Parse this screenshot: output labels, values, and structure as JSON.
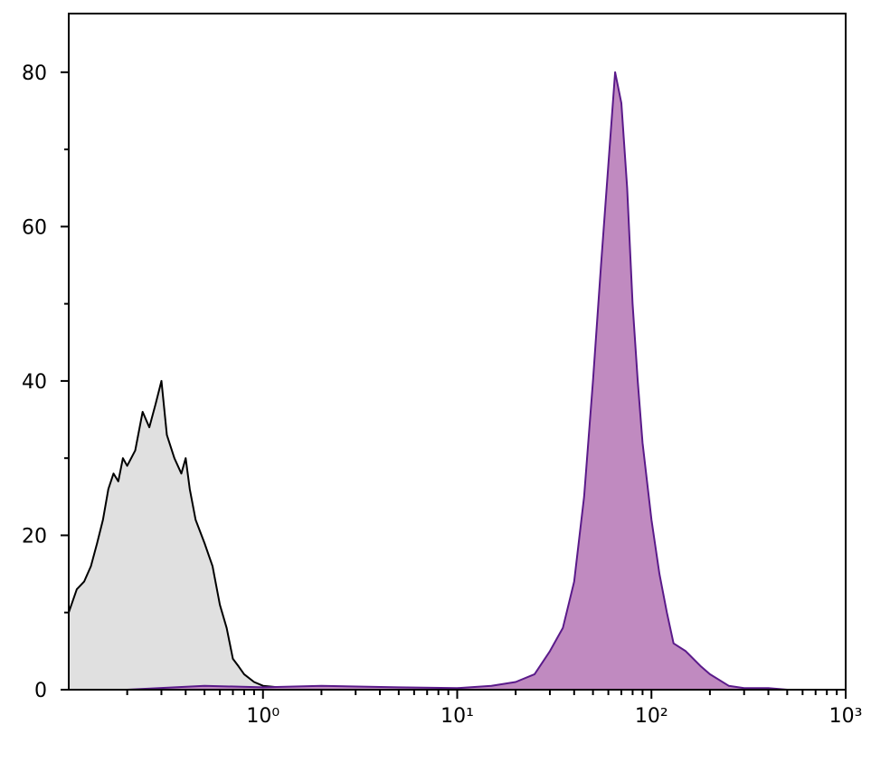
{
  "chart_data": {
    "type": "histogram-area",
    "xscale": "log",
    "xlim": [
      0.1,
      1000
    ],
    "ylim": [
      0,
      87.6
    ],
    "xticks": [
      {
        "value": 1,
        "label": "10⁰"
      },
      {
        "value": 10,
        "label": "10¹"
      },
      {
        "value": 100,
        "label": "10²"
      },
      {
        "value": 1000,
        "label": "10³"
      }
    ],
    "xminorticks": [
      0.2,
      0.3,
      0.4,
      0.5,
      0.6,
      0.7,
      0.8,
      0.9,
      2,
      3,
      4,
      5,
      6,
      7,
      8,
      9,
      20,
      30,
      40,
      50,
      60,
      70,
      80,
      90,
      200,
      300,
      400,
      500,
      600,
      700,
      800,
      900
    ],
    "yticks": [
      0,
      20,
      40,
      60,
      80
    ],
    "yminorticks": [
      10,
      30,
      50,
      70
    ],
    "series": [
      {
        "color": "#000000",
        "fill": "#e0e0e0",
        "x": [
          0.1,
          0.11,
          0.12,
          0.13,
          0.14,
          0.15,
          0.16,
          0.17,
          0.18,
          0.19,
          0.2,
          0.22,
          0.24,
          0.26,
          0.28,
          0.3,
          0.32,
          0.35,
          0.38,
          0.4,
          0.42,
          0.45,
          0.5,
          0.55,
          0.6,
          0.65,
          0.7,
          0.75,
          0.8,
          0.9,
          1.0,
          1.2,
          1.5
        ],
        "values": [
          10,
          13,
          14,
          16,
          19,
          22,
          26,
          28,
          27,
          30,
          29,
          31,
          36,
          34,
          37,
          40,
          33,
          30,
          28,
          30,
          26,
          22,
          19,
          16,
          11,
          8,
          4,
          3,
          2,
          1,
          0.5,
          0.3,
          0
        ]
      },
      {
        "color": "#5a1a8a",
        "fill": "#c08ac0",
        "x": [
          0.2,
          0.5,
          1,
          2,
          5,
          10,
          15,
          20,
          25,
          30,
          35,
          40,
          45,
          50,
          55,
          60,
          65,
          70,
          75,
          80,
          85,
          90,
          100,
          110,
          120,
          130,
          150,
          180,
          200,
          250,
          300,
          400,
          500
        ],
        "values": [
          0,
          0.5,
          0.3,
          0.5,
          0.3,
          0.2,
          0.5,
          1,
          2,
          5,
          8,
          14,
          25,
          40,
          55,
          68,
          80,
          76,
          65,
          50,
          40,
          32,
          22,
          15,
          10,
          6,
          5,
          3,
          2,
          0.5,
          0.2,
          0.2,
          0
        ]
      }
    ]
  }
}
